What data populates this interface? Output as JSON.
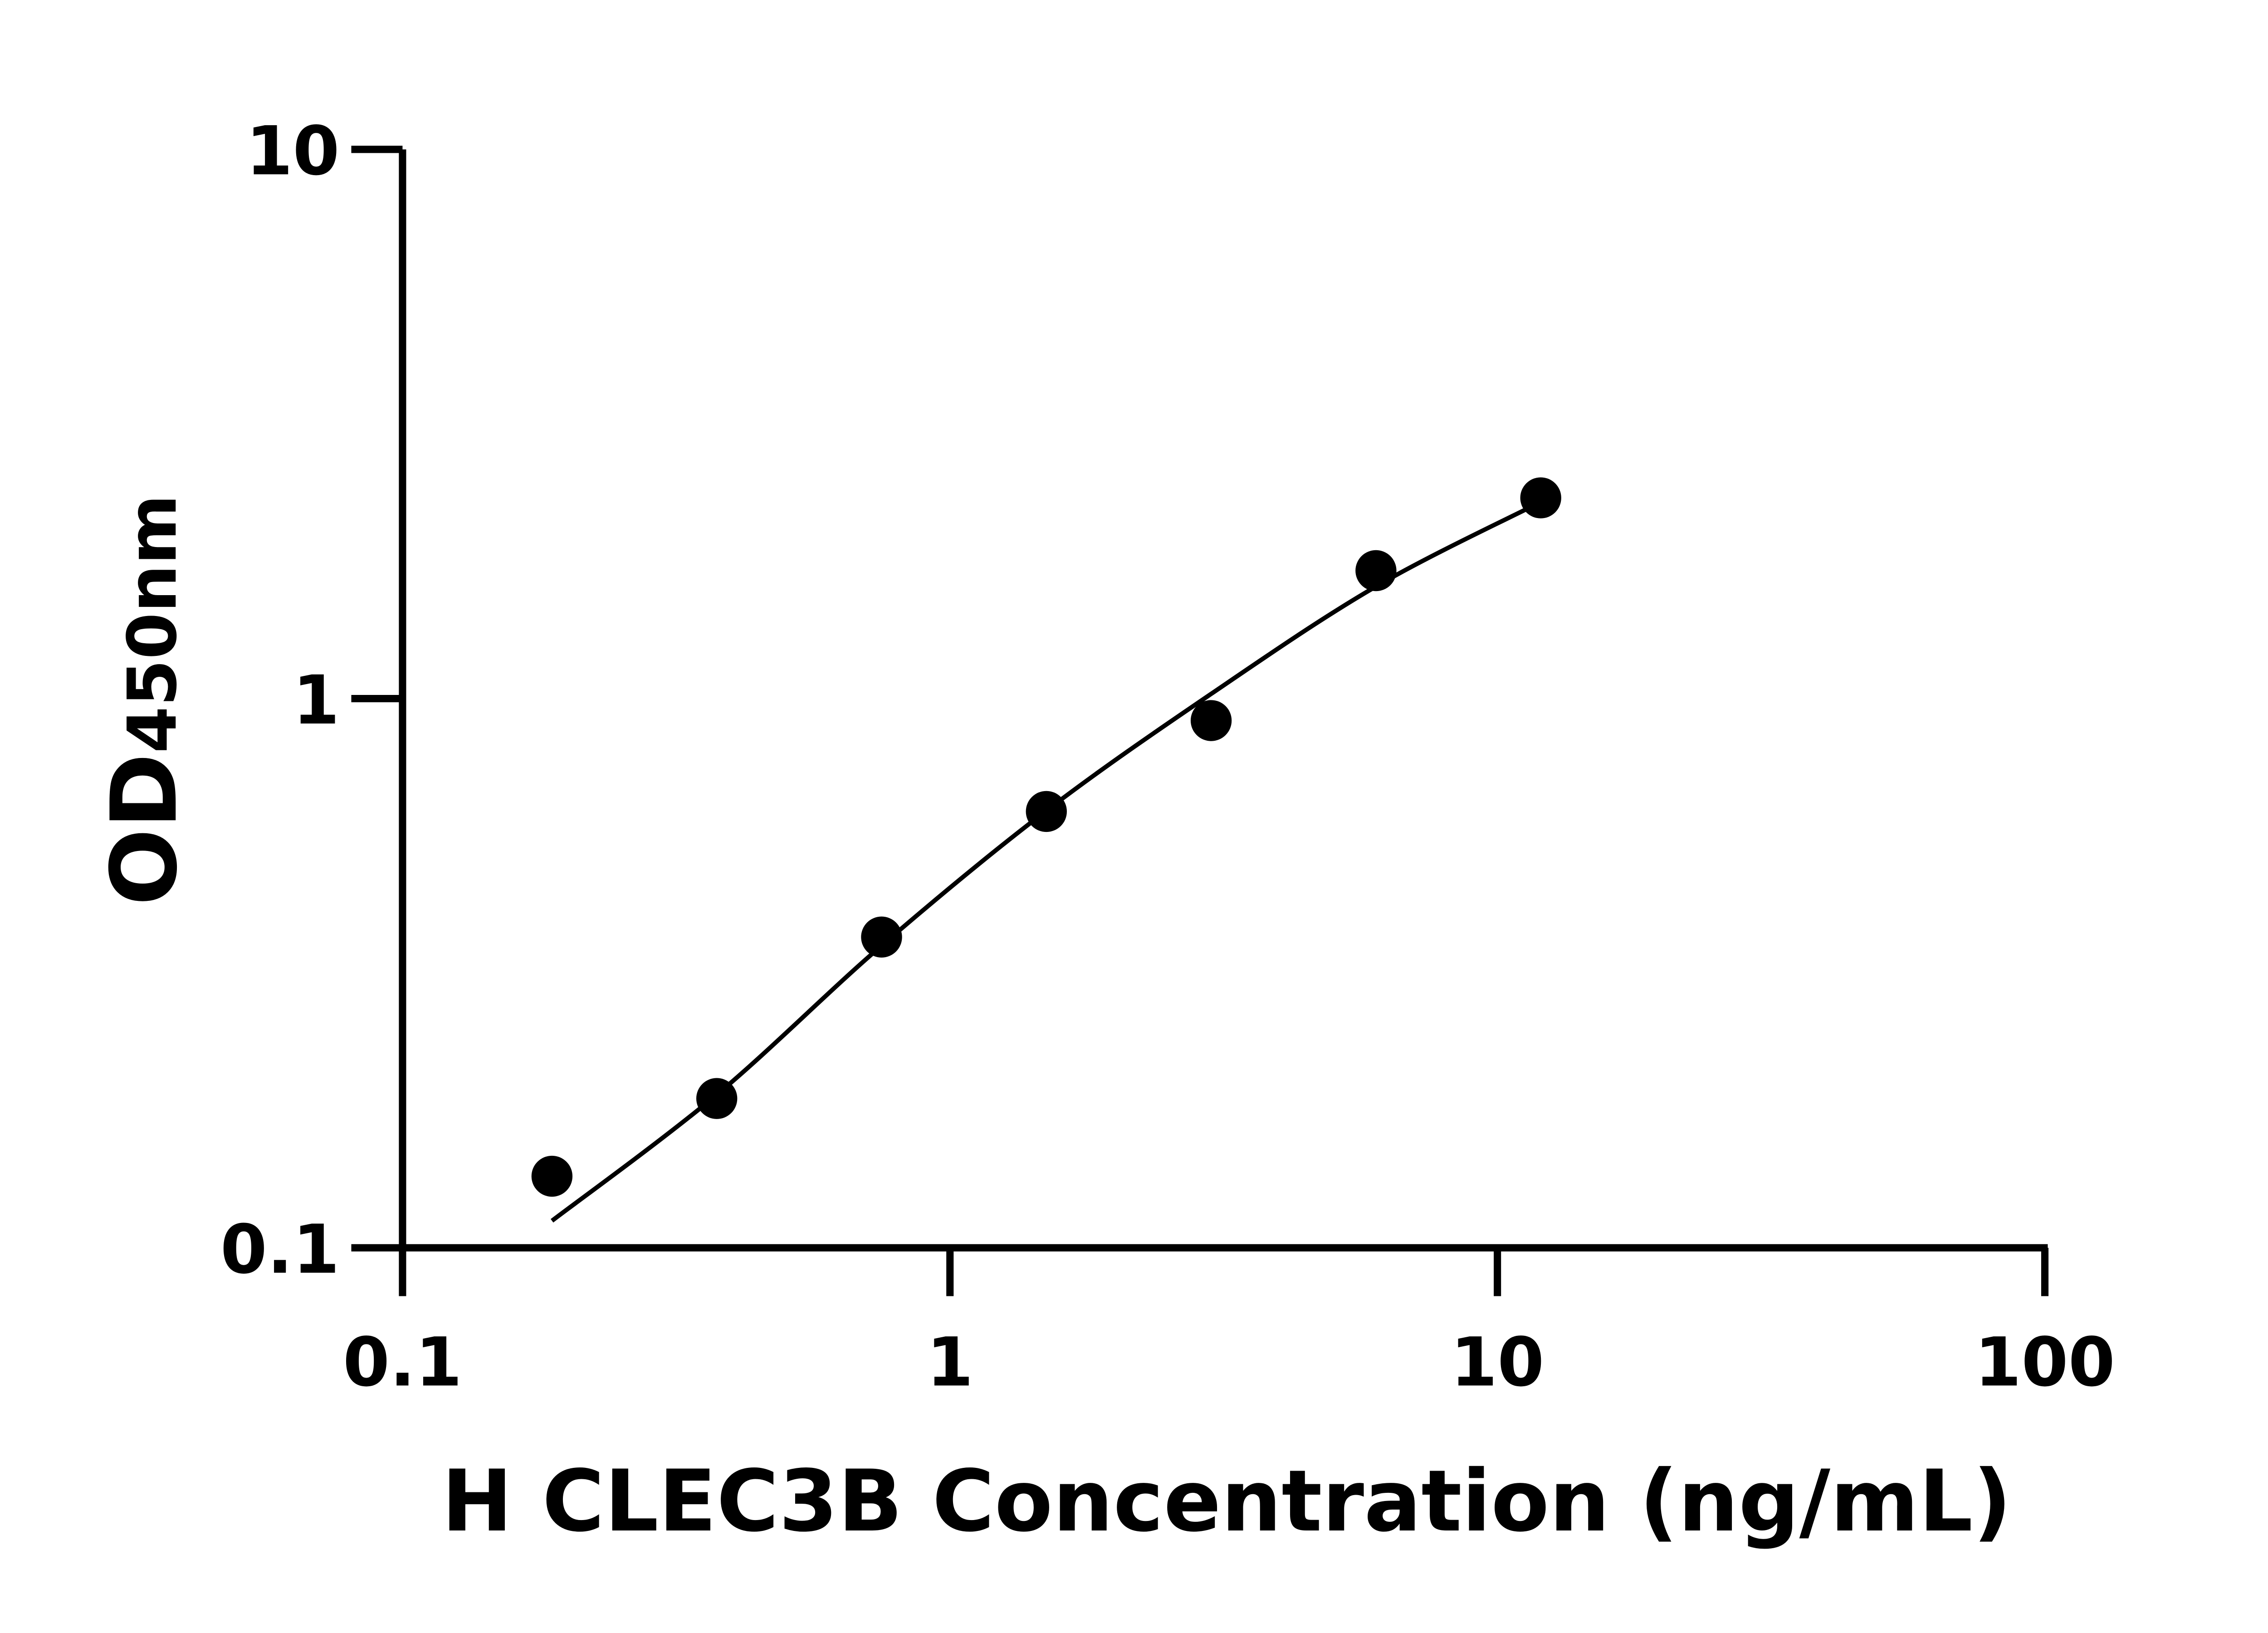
{
  "chart_data": {
    "type": "scatter",
    "xlabel": "H CLEC3B Concentration (ng/mL)",
    "ylabel_main": "OD",
    "ylabel_sub": "450nm",
    "x_scale": "log",
    "y_scale": "log",
    "xlim": [
      0.1,
      100
    ],
    "ylim": [
      0.1,
      10
    ],
    "x_ticks": [
      "0.1",
      "1",
      "10",
      "100"
    ],
    "y_ticks": [
      "0.1",
      "1",
      "10"
    ],
    "grid": false,
    "points": [
      {
        "x": 0.1875,
        "y": 0.135
      },
      {
        "x": 0.375,
        "y": 0.187
      },
      {
        "x": 0.75,
        "y": 0.368
      },
      {
        "x": 1.5,
        "y": 0.623
      },
      {
        "x": 3,
        "y": 0.912
      },
      {
        "x": 6,
        "y": 1.71
      },
      {
        "x": 12,
        "y": 2.32
      }
    ],
    "fit_curve": [
      {
        "x": 0.1875,
        "y": 0.112
      },
      {
        "x": 0.375,
        "y": 0.19
      },
      {
        "x": 0.75,
        "y": 0.355
      },
      {
        "x": 1.5,
        "y": 0.625
      },
      {
        "x": 3,
        "y": 1.02
      },
      {
        "x": 6,
        "y": 1.6
      },
      {
        "x": 12,
        "y": 2.28
      }
    ],
    "colors": {
      "points": "#000000",
      "curve": "#000000",
      "axes": "#000000"
    }
  }
}
